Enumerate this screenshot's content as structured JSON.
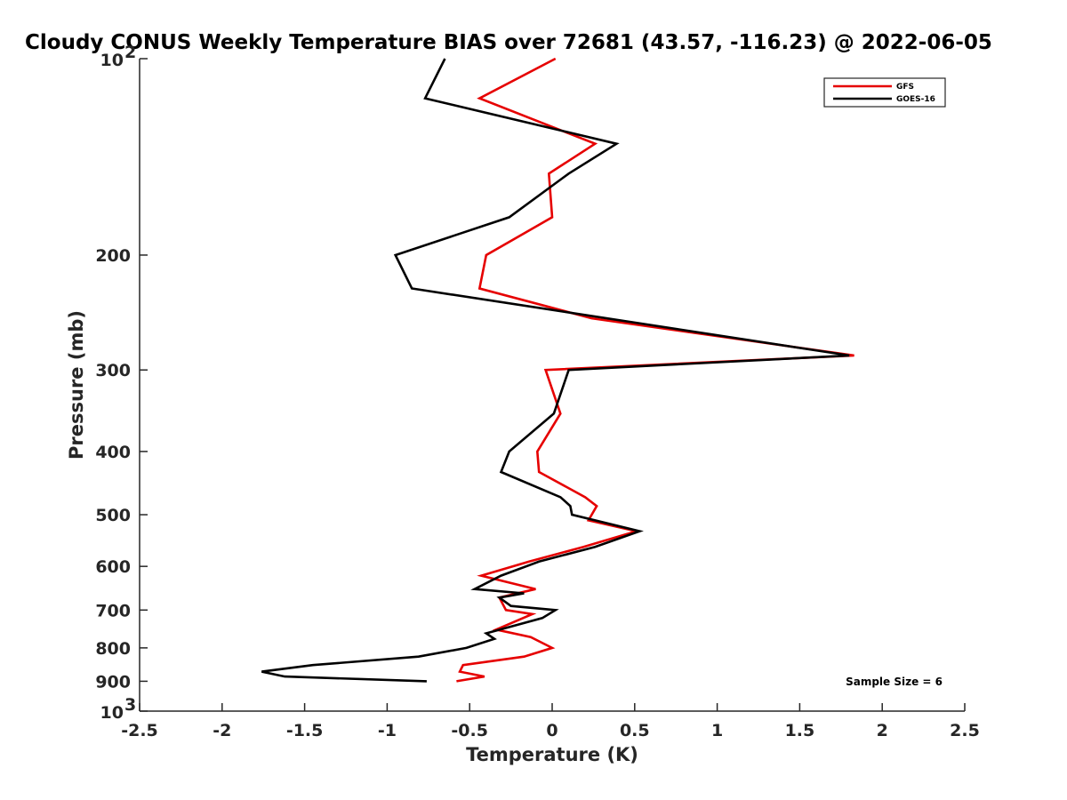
{
  "chart_data": {
    "type": "line",
    "title": "Cloudy CONUS Weekly Temperature BIAS over 72681 (43.57, -116.23) @ 2022-06-05",
    "xlabel": "Temperature (K)",
    "ylabel": "Pressure (mb)",
    "xlim": [
      -2.5,
      2.5
    ],
    "ylim": [
      100,
      1000
    ],
    "y_scale": "log",
    "y_reversed": true,
    "x_ticks": [
      "-2.5",
      "-2",
      "-1.5",
      "-1",
      "-0.5",
      "0",
      "0.5",
      "1",
      "1.5",
      "2",
      "2.5"
    ],
    "y_ticks": [
      {
        "p": 100,
        "base": "10",
        "exp": "2"
      },
      {
        "p": 200,
        "label": "200"
      },
      {
        "p": 300,
        "label": "300"
      },
      {
        "p": 400,
        "label": "400"
      },
      {
        "p": 500,
        "label": "500"
      },
      {
        "p": 600,
        "label": "600"
      },
      {
        "p": 700,
        "label": "700"
      },
      {
        "p": 800,
        "label": "800"
      },
      {
        "p": 900,
        "label": "900"
      },
      {
        "p": 1000,
        "base": "10",
        "exp": "3"
      }
    ],
    "grid": false,
    "legend_position": "top-right",
    "series": [
      {
        "name": "GFS",
        "color": "#e60000",
        "points": [
          {
            "t": 0.02,
            "p": 100
          },
          {
            "t": -0.44,
            "p": 115
          },
          {
            "t": 0.26,
            "p": 135
          },
          {
            "t": -0.02,
            "p": 150
          },
          {
            "t": 0.0,
            "p": 175
          },
          {
            "t": -0.4,
            "p": 200
          },
          {
            "t": -0.44,
            "p": 225
          },
          {
            "t": 0.24,
            "p": 250
          },
          {
            "t": 1.83,
            "p": 285
          },
          {
            "t": -0.04,
            "p": 300
          },
          {
            "t": 0.05,
            "p": 350
          },
          {
            "t": -0.09,
            "p": 400
          },
          {
            "t": -0.08,
            "p": 430
          },
          {
            "t": 0.2,
            "p": 470
          },
          {
            "t": 0.27,
            "p": 485
          },
          {
            "t": 0.24,
            "p": 500
          },
          {
            "t": 0.22,
            "p": 510
          },
          {
            "t": 0.51,
            "p": 530
          },
          {
            "t": 0.19,
            "p": 560
          },
          {
            "t": -0.14,
            "p": 590
          },
          {
            "t": -0.43,
            "p": 620
          },
          {
            "t": -0.1,
            "p": 650
          },
          {
            "t": -0.32,
            "p": 670
          },
          {
            "t": -0.28,
            "p": 700
          },
          {
            "t": -0.12,
            "p": 710
          },
          {
            "t": -0.34,
            "p": 750
          },
          {
            "t": -0.13,
            "p": 770
          },
          {
            "t": 0.0,
            "p": 800
          },
          {
            "t": -0.17,
            "p": 825
          },
          {
            "t": -0.54,
            "p": 850
          },
          {
            "t": -0.56,
            "p": 870
          },
          {
            "t": -0.41,
            "p": 885
          },
          {
            "t": -0.58,
            "p": 900
          }
        ]
      },
      {
        "name": "GOES-16",
        "color": "#000000",
        "points": [
          {
            "t": -0.65,
            "p": 100
          },
          {
            "t": -0.77,
            "p": 115
          },
          {
            "t": 0.39,
            "p": 135
          },
          {
            "t": 0.1,
            "p": 150
          },
          {
            "t": -0.26,
            "p": 175
          },
          {
            "t": -0.95,
            "p": 200
          },
          {
            "t": -0.85,
            "p": 225
          },
          {
            "t": 1.8,
            "p": 285
          },
          {
            "t": 0.1,
            "p": 300
          },
          {
            "t": 0.01,
            "p": 350
          },
          {
            "t": -0.26,
            "p": 400
          },
          {
            "t": -0.31,
            "p": 430
          },
          {
            "t": 0.05,
            "p": 470
          },
          {
            "t": 0.11,
            "p": 485
          },
          {
            "t": 0.12,
            "p": 500
          },
          {
            "t": 0.53,
            "p": 530
          },
          {
            "t": 0.26,
            "p": 560
          },
          {
            "t": -0.08,
            "p": 590
          },
          {
            "t": -0.31,
            "p": 620
          },
          {
            "t": -0.47,
            "p": 650
          },
          {
            "t": -0.17,
            "p": 660
          },
          {
            "t": -0.32,
            "p": 670
          },
          {
            "t": -0.25,
            "p": 690
          },
          {
            "t": 0.02,
            "p": 700
          },
          {
            "t": -0.06,
            "p": 720
          },
          {
            "t": -0.4,
            "p": 760
          },
          {
            "t": -0.35,
            "p": 775
          },
          {
            "t": -0.52,
            "p": 800
          },
          {
            "t": -0.81,
            "p": 825
          },
          {
            "t": -1.45,
            "p": 850
          },
          {
            "t": -1.76,
            "p": 870
          },
          {
            "t": -1.62,
            "p": 885
          },
          {
            "t": -0.76,
            "p": 900
          }
        ]
      }
    ],
    "annotation": "Sample Size = 6"
  }
}
